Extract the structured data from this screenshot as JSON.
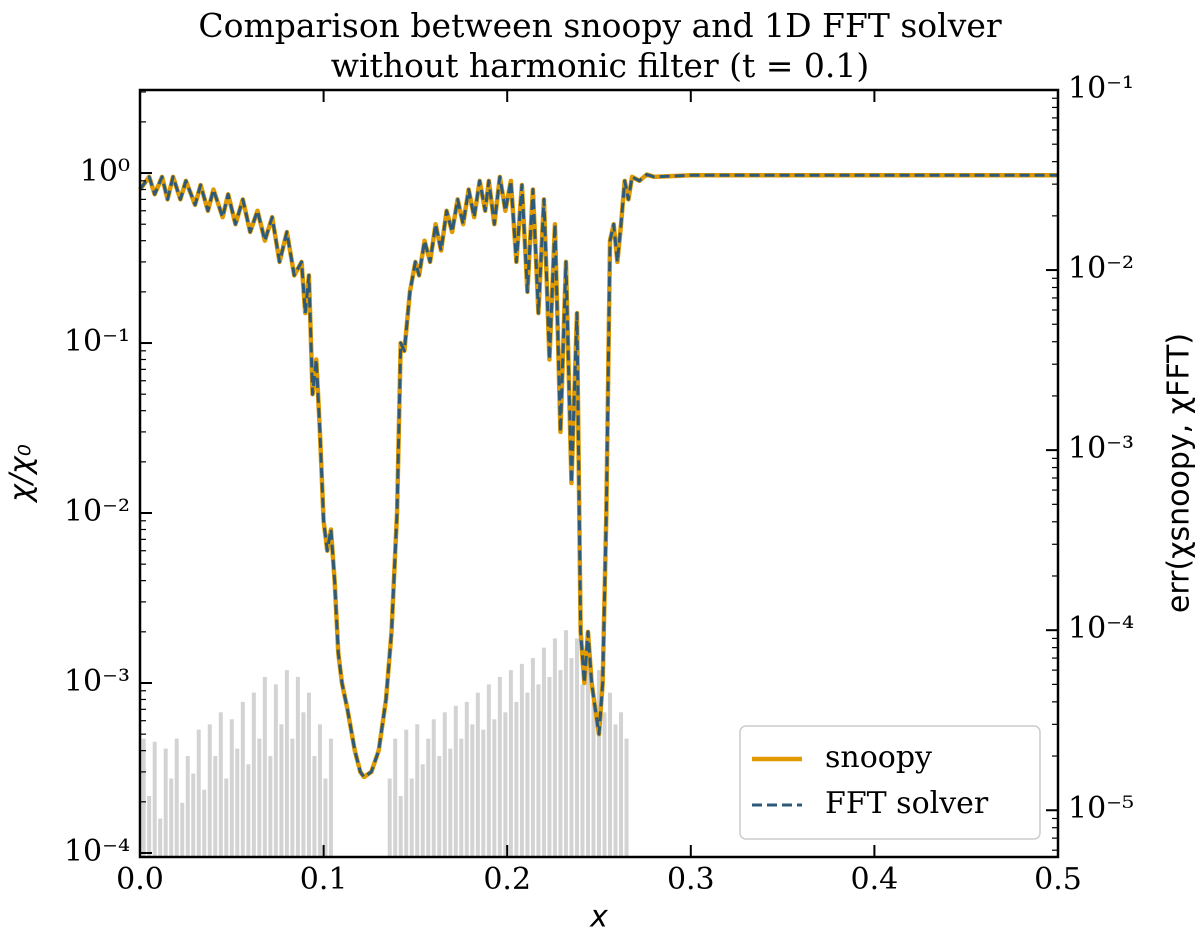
{
  "chart_data": {
    "type": "line",
    "title": "Comparison between snoopy and 1D FFT solver",
    "subtitle": "without harmonic filter (t = 0.1)",
    "x_label": "x",
    "y_label": "χ/χ₀",
    "y2_label": "err(χsnoopy, χFFT)",
    "xlim": [
      0,
      0.5
    ],
    "xticks": [
      {
        "value": 0,
        "label": "0.0"
      },
      0.1,
      0.2,
      0.3,
      0.4,
      0.5
    ],
    "yscale": "log",
    "ylim": [
      9.47e-05,
      3.08
    ],
    "yticks": [
      {
        "value": 0.0001,
        "label": "10⁻⁴"
      },
      {
        "value": 0.001,
        "label": "10⁻³"
      },
      {
        "value": 0.01,
        "label": "10⁻²"
      },
      {
        "value": 0.1,
        "label": "10⁻¹"
      },
      {
        "value": 1,
        "label": "10⁰"
      }
    ],
    "y2scale": "log",
    "y2lim": [
      5.5e-06,
      0.1
    ],
    "y2ticks": [
      {
        "value": 1e-05,
        "label": "10⁻⁵"
      },
      {
        "value": 0.0001,
        "label": "10⁻⁴"
      },
      {
        "value": 0.001,
        "label": "10⁻³"
      },
      {
        "value": 0.01,
        "label": "10⁻²"
      },
      {
        "value": 0.1,
        "label": "10⁻¹"
      }
    ],
    "legend": "lower right",
    "x": [
      0,
      0.005,
      0.008,
      0.012,
      0.015,
      0.018,
      0.022,
      0.025,
      0.03,
      0.033,
      0.037,
      0.04,
      0.045,
      0.048,
      0.052,
      0.056,
      0.06,
      0.064,
      0.068,
      0.072,
      0.076,
      0.08,
      0.084,
      0.088,
      0.09,
      0.092,
      0.094,
      0.096,
      0.098,
      0.1,
      0.102,
      0.104,
      0.106,
      0.108,
      0.11,
      0.113,
      0.117,
      0.12,
      0.122,
      0.126,
      0.13,
      0.134,
      0.137,
      0.14,
      0.142,
      0.144,
      0.147,
      0.15,
      0.152,
      0.155,
      0.158,
      0.161,
      0.164,
      0.167,
      0.17,
      0.173,
      0.176,
      0.179,
      0.182,
      0.185,
      0.188,
      0.19,
      0.193,
      0.196,
      0.199,
      0.202,
      0.205,
      0.208,
      0.211,
      0.214,
      0.217,
      0.22,
      0.223,
      0.226,
      0.229,
      0.232,
      0.235,
      0.238,
      0.24,
      0.242,
      0.244,
      0.246,
      0.248,
      0.25,
      0.252,
      0.254,
      0.256,
      0.258,
      0.26,
      0.262,
      0.264,
      0.266,
      0.268,
      0.272,
      0.276,
      0.28,
      0.3,
      0.35,
      0.4,
      0.45,
      0.5
    ],
    "series": [
      {
        "name": "snoopy",
        "color": "#e09a00",
        "dash": false,
        "values": [
          0.8,
          0.95,
          0.75,
          0.95,
          0.7,
          0.95,
          0.7,
          0.9,
          0.65,
          0.85,
          0.6,
          0.8,
          0.55,
          0.75,
          0.5,
          0.7,
          0.45,
          0.6,
          0.4,
          0.55,
          0.3,
          0.45,
          0.25,
          0.3,
          0.15,
          0.25,
          0.05,
          0.08,
          0.03,
          0.009,
          0.006,
          0.008,
          0.004,
          0.0015,
          0.001,
          0.0007,
          0.0004,
          0.0003,
          0.00028,
          0.0003,
          0.0004,
          0.0008,
          0.002,
          0.01,
          0.1,
          0.09,
          0.2,
          0.3,
          0.25,
          0.4,
          0.3,
          0.5,
          0.35,
          0.6,
          0.45,
          0.7,
          0.5,
          0.8,
          0.55,
          0.9,
          0.6,
          0.9,
          0.5,
          0.95,
          0.6,
          0.9,
          0.3,
          0.85,
          0.2,
          0.8,
          0.15,
          0.7,
          0.08,
          0.5,
          0.03,
          0.3,
          0.015,
          0.15,
          0.002,
          0.001,
          0.002,
          0.001,
          0.0007,
          0.0005,
          0.001,
          0.01,
          0.4,
          0.5,
          0.3,
          0.5,
          0.9,
          0.7,
          0.95,
          0.9,
          0.98,
          0.95,
          0.97,
          0.97,
          0.97,
          0.97,
          0.97
        ]
      },
      {
        "name": "FFT solver",
        "color": "#2e5a7a",
        "dash": true,
        "values": [
          0.8,
          0.95,
          0.75,
          0.95,
          0.7,
          0.95,
          0.7,
          0.9,
          0.65,
          0.85,
          0.6,
          0.8,
          0.55,
          0.75,
          0.5,
          0.7,
          0.45,
          0.6,
          0.4,
          0.55,
          0.3,
          0.45,
          0.25,
          0.3,
          0.15,
          0.25,
          0.05,
          0.08,
          0.03,
          0.009,
          0.006,
          0.008,
          0.004,
          0.0015,
          0.001,
          0.0007,
          0.0004,
          0.0003,
          0.00028,
          0.0003,
          0.0004,
          0.0008,
          0.002,
          0.01,
          0.1,
          0.09,
          0.2,
          0.3,
          0.25,
          0.4,
          0.3,
          0.5,
          0.35,
          0.6,
          0.45,
          0.7,
          0.5,
          0.8,
          0.55,
          0.9,
          0.6,
          0.9,
          0.5,
          0.95,
          0.6,
          0.9,
          0.3,
          0.85,
          0.2,
          0.8,
          0.15,
          0.7,
          0.08,
          0.5,
          0.03,
          0.3,
          0.015,
          0.15,
          0.002,
          0.001,
          0.002,
          0.001,
          0.0007,
          0.0005,
          0.001,
          0.01,
          0.4,
          0.5,
          0.3,
          0.5,
          0.9,
          0.7,
          0.95,
          0.9,
          0.98,
          0.95,
          0.97,
          0.97,
          0.97,
          0.97,
          0.97
        ]
      }
    ],
    "error_bars": {
      "axis": "y2",
      "color": "#d3d3d3",
      "x": [
        0.002,
        0.005,
        0.008,
        0.011,
        0.014,
        0.017,
        0.02,
        0.023,
        0.026,
        0.029,
        0.032,
        0.035,
        0.038,
        0.041,
        0.044,
        0.047,
        0.05,
        0.053,
        0.056,
        0.059,
        0.062,
        0.065,
        0.068,
        0.071,
        0.074,
        0.077,
        0.08,
        0.083,
        0.086,
        0.089,
        0.092,
        0.095,
        0.098,
        0.101,
        0.104,
        0.136,
        0.139,
        0.142,
        0.145,
        0.148,
        0.151,
        0.154,
        0.157,
        0.16,
        0.163,
        0.166,
        0.169,
        0.172,
        0.175,
        0.178,
        0.181,
        0.184,
        0.187,
        0.19,
        0.193,
        0.196,
        0.199,
        0.202,
        0.205,
        0.208,
        0.211,
        0.214,
        0.217,
        0.22,
        0.223,
        0.226,
        0.229,
        0.232,
        0.235,
        0.238,
        0.241,
        0.244,
        0.247,
        0.25,
        0.253,
        0.256,
        0.259,
        0.262,
        0.265
      ],
      "values": [
        2.5e-05,
        1.2e-05,
        2.4e-05,
        9e-06,
        2.2e-05,
        1.5e-05,
        2.5e-05,
        1.1e-05,
        2e-05,
        1.6e-05,
        2.8e-05,
        1.3e-05,
        3e-05,
        2e-05,
        3.5e-05,
        1.5e-05,
        3.2e-05,
        2.2e-05,
        4e-05,
        1.8e-05,
        4.5e-05,
        2.5e-05,
        5.5e-05,
        2e-05,
        5e-05,
        3e-05,
        6e-05,
        2.5e-05,
        5.5e-05,
        3.5e-05,
        4.5e-05,
        2e-05,
        3e-05,
        1.5e-05,
        2.5e-05,
        1.5e-05,
        2.5e-05,
        1.2e-05,
        2.8e-05,
        1.5e-05,
        3e-05,
        1.8e-05,
        2.5e-05,
        3.2e-05,
        2e-05,
        3.5e-05,
        2.2e-05,
        3.8e-05,
        2.5e-05,
        4e-05,
        3e-05,
        4.5e-05,
        2.8e-05,
        5e-05,
        3.2e-05,
        5.5e-05,
        3.5e-05,
        6e-05,
        4e-05,
        6.5e-05,
        4.5e-05,
        7e-05,
        5e-05,
        8e-05,
        5.5e-05,
        9e-05,
        6e-05,
        0.0001,
        7e-05,
        9e-05,
        5e-05,
        8e-05,
        4e-05,
        6e-05,
        3.5e-05,
        4.5e-05,
        3e-05,
        3.5e-05,
        2.5e-05
      ]
    }
  }
}
